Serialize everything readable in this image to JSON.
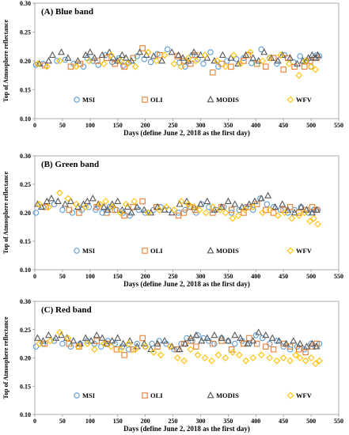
{
  "chart_data": [
    {
      "type": "scatter",
      "title": "(A) Blue band",
      "xlabel": "Days  (define June 2, 2018 as the first day)",
      "ylabel": "Top of Atmosphere reflectance",
      "xlim": [
        0,
        550
      ],
      "ylim": [
        0.1,
        0.3
      ],
      "xticks": [
        "0",
        "50",
        "100",
        "150",
        "200",
        "250",
        "300",
        "350",
        "400",
        "450",
        "500",
        "550"
      ],
      "yticks": [
        "0.10",
        "0.15",
        "0.20",
        "0.25",
        "0.30"
      ],
      "grid": false,
      "legend": "bottom, inside plot",
      "series": [
        {
          "name": "MSI",
          "marker": "circle",
          "color": "#5b9bd5",
          "x": [
            2,
            15,
            40,
            55,
            70,
            88,
            95,
            105,
            115,
            128,
            140,
            152,
            160,
            170,
            185,
            198,
            210,
            222,
            240,
            262,
            272,
            285,
            295,
            305,
            318,
            332,
            348,
            365,
            378,
            392,
            410,
            425,
            438,
            452,
            468,
            480,
            492,
            500,
            505,
            510,
            515
          ],
          "y": [
            0.193,
            0.195,
            0.2,
            0.202,
            0.195,
            0.19,
            0.205,
            0.2,
            0.193,
            0.21,
            0.198,
            0.205,
            0.192,
            0.197,
            0.208,
            0.203,
            0.198,
            0.212,
            0.22,
            0.197,
            0.19,
            0.21,
            0.203,
            0.195,
            0.215,
            0.19,
            0.2,
            0.203,
            0.205,
            0.196,
            0.22,
            0.205,
            0.195,
            0.21,
            0.198,
            0.208,
            0.2,
            0.19,
            0.205,
            0.21,
            0.208
          ]
        },
        {
          "name": "OLI",
          "marker": "square",
          "color": "#ed7d31",
          "x": [
            18,
            65,
            82,
            113,
            130,
            145,
            162,
            178,
            195,
            226,
            258,
            270,
            282,
            290,
            322,
            338,
            355,
            378,
            386,
            402,
            418,
            432,
            450,
            458,
            470,
            488,
            498,
            510
          ],
          "y": [
            0.192,
            0.19,
            0.195,
            0.2,
            0.205,
            0.195,
            0.19,
            0.205,
            0.222,
            0.21,
            0.208,
            0.2,
            0.195,
            0.21,
            0.18,
            0.195,
            0.19,
            0.2,
            0.21,
            0.195,
            0.19,
            0.205,
            0.185,
            0.205,
            0.19,
            0.19,
            0.2,
            0.205
          ]
        },
        {
          "name": "MODIS",
          "marker": "triangle",
          "color": "#595959",
          "x": [
            8,
            25,
            32,
            48,
            60,
            78,
            92,
            100,
            108,
            122,
            135,
            142,
            150,
            158,
            165,
            175,
            190,
            202,
            215,
            230,
            248,
            260,
            268,
            278,
            288,
            300,
            312,
            325,
            340,
            355,
            368,
            382,
            395,
            405,
            415,
            428,
            440,
            448,
            462,
            475,
            485,
            495,
            502,
            508,
            512
          ],
          "y": [
            0.195,
            0.2,
            0.21,
            0.215,
            0.205,
            0.2,
            0.21,
            0.215,
            0.205,
            0.21,
            0.215,
            0.205,
            0.2,
            0.21,
            0.205,
            0.2,
            0.215,
            0.21,
            0.208,
            0.2,
            0.215,
            0.21,
            0.205,
            0.2,
            0.215,
            0.21,
            0.205,
            0.2,
            0.21,
            0.205,
            0.195,
            0.21,
            0.205,
            0.2,
            0.215,
            0.205,
            0.2,
            0.21,
            0.205,
            0.195,
            0.2,
            0.205,
            0.21,
            0.205,
            0.21
          ]
        },
        {
          "name": "WFV",
          "marker": "diamond",
          "color": "#ffc000",
          "x": [
            5,
            22,
            45,
            75,
            98,
            125,
            138,
            155,
            168,
            182,
            205,
            220,
            235,
            252,
            265,
            278,
            292,
            308,
            330,
            345,
            360,
            372,
            390,
            412,
            425,
            445,
            460,
            478,
            490,
            500,
            508
          ],
          "y": [
            0.195,
            0.19,
            0.2,
            0.19,
            0.2,
            0.195,
            0.21,
            0.2,
            0.195,
            0.19,
            0.215,
            0.2,
            0.21,
            0.195,
            0.19,
            0.205,
            0.2,
            0.21,
            0.2,
            0.19,
            0.21,
            0.195,
            0.215,
            0.2,
            0.205,
            0.21,
            0.195,
            0.175,
            0.2,
            0.19,
            0.185
          ]
        }
      ]
    },
    {
      "type": "scatter",
      "title": "(B) Green band",
      "xlabel": "Days  (define June 2, 2018 as the first day)",
      "ylabel": "Top of Atmosphere reflectance",
      "xlim": [
        0,
        550
      ],
      "ylim": [
        0.1,
        0.3
      ],
      "xticks": [
        "0",
        "50",
        "100",
        "150",
        "200",
        "250",
        "300",
        "350",
        "400",
        "450",
        "500",
        "550"
      ],
      "yticks": [
        "0.10",
        "0.15",
        "0.20",
        "0.25",
        "0.30"
      ],
      "grid": false,
      "legend": "bottom, inside plot",
      "series": [
        {
          "name": "MSI",
          "marker": "circle",
          "color": "#5b9bd5",
          "x": [
            2,
            15,
            35,
            50,
            68,
            85,
            98,
            110,
            122,
            135,
            148,
            160,
            172,
            188,
            200,
            215,
            228,
            242,
            260,
            272,
            282,
            292,
            302,
            315,
            328,
            342,
            356,
            370,
            382,
            395,
            408,
            420,
            432,
            445,
            458,
            470,
            482,
            495,
            505,
            512
          ],
          "y": [
            0.2,
            0.21,
            0.215,
            0.205,
            0.2,
            0.205,
            0.21,
            0.205,
            0.2,
            0.21,
            0.205,
            0.2,
            0.195,
            0.205,
            0.2,
            0.205,
            0.21,
            0.205,
            0.2,
            0.205,
            0.21,
            0.2,
            0.215,
            0.21,
            0.205,
            0.21,
            0.2,
            0.205,
            0.21,
            0.205,
            0.225,
            0.215,
            0.21,
            0.205,
            0.2,
            0.205,
            0.21,
            0.2,
            0.205,
            0.205
          ]
        },
        {
          "name": "OLI",
          "marker": "square",
          "color": "#ed7d31",
          "x": [
            20,
            62,
            80,
            112,
            130,
            145,
            162,
            178,
            195,
            220,
            260,
            270,
            280,
            290,
            322,
            338,
            356,
            378,
            386,
            402,
            418,
            432,
            450,
            462,
            478,
            490,
            502,
            510
          ],
          "y": [
            0.21,
            0.205,
            0.2,
            0.21,
            0.2,
            0.205,
            0.195,
            0.21,
            0.22,
            0.21,
            0.195,
            0.2,
            0.21,
            0.205,
            0.2,
            0.21,
            0.205,
            0.2,
            0.21,
            0.215,
            0.205,
            0.2,
            0.205,
            0.21,
            0.2,
            0.205,
            0.21,
            0.205
          ]
        },
        {
          "name": "MODIS",
          "marker": "triangle",
          "color": "#595959",
          "x": [
            5,
            12,
            22,
            30,
            42,
            55,
            65,
            78,
            88,
            95,
            105,
            115,
            125,
            132,
            140,
            150,
            158,
            168,
            175,
            185,
            198,
            210,
            222,
            235,
            248,
            262,
            275,
            288,
            300,
            312,
            325,
            338,
            350,
            362,
            375,
            388,
            398,
            410,
            422,
            435,
            448,
            458,
            470,
            482,
            492,
            502,
            510
          ],
          "y": [
            0.215,
            0.21,
            0.22,
            0.225,
            0.22,
            0.215,
            0.22,
            0.21,
            0.215,
            0.22,
            0.225,
            0.215,
            0.21,
            0.205,
            0.215,
            0.22,
            0.205,
            0.21,
            0.2,
            0.21,
            0.205,
            0.2,
            0.21,
            0.205,
            0.2,
            0.215,
            0.22,
            0.21,
            0.215,
            0.22,
            0.205,
            0.21,
            0.22,
            0.215,
            0.21,
            0.215,
            0.22,
            0.225,
            0.23,
            0.21,
            0.215,
            0.205,
            0.2,
            0.21,
            0.205,
            0.2,
            0.205
          ]
        },
        {
          "name": "WFV",
          "marker": "diamond",
          "color": "#ffc000",
          "x": [
            8,
            25,
            45,
            60,
            75,
            92,
            118,
            128,
            140,
            155,
            165,
            180,
            205,
            225,
            238,
            252,
            265,
            278,
            288,
            298,
            310,
            322,
            335,
            345,
            358,
            368,
            380,
            395,
            412,
            425,
            440,
            452,
            465,
            478,
            488,
            498,
            505,
            512
          ],
          "y": [
            0.215,
            0.21,
            0.235,
            0.225,
            0.215,
            0.21,
            0.215,
            0.22,
            0.21,
            0.2,
            0.215,
            0.22,
            0.2,
            0.205,
            0.21,
            0.205,
            0.22,
            0.215,
            0.21,
            0.205,
            0.2,
            0.21,
            0.205,
            0.2,
            0.19,
            0.195,
            0.205,
            0.21,
            0.2,
            0.205,
            0.195,
            0.2,
            0.19,
            0.195,
            0.2,
            0.185,
            0.19,
            0.18
          ]
        }
      ]
    },
    {
      "type": "scatter",
      "title": "(C) Red band",
      "xlabel": "Days  (define June 2, 2018 as the first day)",
      "ylabel": "Top of Atmosphere reflectance",
      "xlim": [
        0,
        550
      ],
      "ylim": [
        0.1,
        0.3
      ],
      "xticks": [
        "0",
        "50",
        "100",
        "150",
        "200",
        "250",
        "300",
        "350",
        "400",
        "450",
        "500",
        "550"
      ],
      "yticks": [
        "0.10",
        "0.15",
        "0.20",
        "0.25",
        "0.30"
      ],
      "grid": false,
      "legend": "bottom, inside plot",
      "series": [
        {
          "name": "MSI",
          "marker": "circle",
          "color": "#5b9bd5",
          "x": [
            2,
            15,
            35,
            50,
            65,
            82,
            95,
            108,
            120,
            132,
            145,
            158,
            170,
            185,
            200,
            212,
            225,
            238,
            252,
            265,
            275,
            285,
            295,
            305,
            315,
            325,
            338,
            350,
            362,
            375,
            388,
            400,
            412,
            425,
            438,
            450,
            462,
            475,
            488,
            500,
            508,
            515
          ],
          "y": [
            0.22,
            0.225,
            0.23,
            0.225,
            0.22,
            0.225,
            0.23,
            0.225,
            0.22,
            0.23,
            0.225,
            0.22,
            0.215,
            0.225,
            0.22,
            0.225,
            0.23,
            0.225,
            0.215,
            0.225,
            0.235,
            0.23,
            0.24,
            0.235,
            0.23,
            0.225,
            0.235,
            0.23,
            0.225,
            0.23,
            0.225,
            0.24,
            0.235,
            0.225,
            0.23,
            0.22,
            0.215,
            0.22,
            0.215,
            0.225,
            0.22,
            0.225
          ]
        },
        {
          "name": "OLI",
          "marker": "square",
          "color": "#ed7d31",
          "x": [
            18,
            62,
            80,
            112,
            130,
            148,
            162,
            178,
            195,
            222,
            258,
            270,
            282,
            292,
            322,
            338,
            356,
            378,
            388,
            402,
            418,
            432,
            450,
            462,
            478,
            490,
            502,
            510
          ],
          "y": [
            0.225,
            0.225,
            0.22,
            0.23,
            0.225,
            0.215,
            0.205,
            0.215,
            0.235,
            0.22,
            0.215,
            0.225,
            0.23,
            0.22,
            0.225,
            0.23,
            0.215,
            0.225,
            0.235,
            0.225,
            0.22,
            0.215,
            0.225,
            0.22,
            0.215,
            0.21,
            0.22,
            0.225
          ]
        },
        {
          "name": "MODIS",
          "marker": "triangle",
          "color": "#595959",
          "x": [
            5,
            15,
            25,
            38,
            48,
            58,
            70,
            82,
            92,
            102,
            112,
            122,
            130,
            140,
            150,
            160,
            172,
            185,
            198,
            210,
            222,
            235,
            248,
            262,
            272,
            282,
            292,
            302,
            312,
            325,
            338,
            350,
            362,
            372,
            385,
            395,
            405,
            418,
            430,
            442,
            455,
            468,
            480,
            492,
            502,
            510
          ],
          "y": [
            0.235,
            0.23,
            0.24,
            0.235,
            0.24,
            0.235,
            0.23,
            0.225,
            0.235,
            0.23,
            0.24,
            0.235,
            0.225,
            0.23,
            0.235,
            0.225,
            0.23,
            0.22,
            0.225,
            0.215,
            0.225,
            0.23,
            0.22,
            0.215,
            0.225,
            0.235,
            0.24,
            0.23,
            0.235,
            0.24,
            0.235,
            0.23,
            0.24,
            0.235,
            0.225,
            0.23,
            0.245,
            0.24,
            0.235,
            0.23,
            0.225,
            0.23,
            0.225,
            0.22,
            0.225,
            0.22
          ]
        },
        {
          "name": "WFV",
          "marker": "diamond",
          "color": "#ffc000",
          "x": [
            8,
            28,
            45,
            60,
            78,
            95,
            108,
            125,
            138,
            155,
            170,
            182,
            200,
            215,
            228,
            245,
            258,
            270,
            282,
            295,
            308,
            320,
            332,
            345,
            358,
            370,
            382,
            395,
            410,
            425,
            438,
            450,
            462,
            472,
            480,
            490,
            500,
            508,
            515
          ],
          "y": [
            0.225,
            0.23,
            0.245,
            0.235,
            0.22,
            0.225,
            0.215,
            0.225,
            0.22,
            0.215,
            0.225,
            0.215,
            0.22,
            0.21,
            0.205,
            0.22,
            0.2,
            0.195,
            0.215,
            0.205,
            0.2,
            0.195,
            0.205,
            0.2,
            0.21,
            0.205,
            0.195,
            0.2,
            0.205,
            0.2,
            0.195,
            0.2,
            0.195,
            0.205,
            0.2,
            0.195,
            0.2,
            0.19,
            0.195
          ]
        }
      ]
    }
  ]
}
